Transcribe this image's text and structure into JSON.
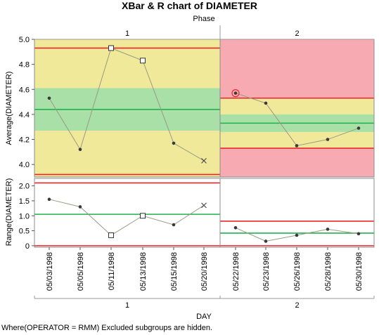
{
  "title": "XBar & R chart of DIAMETER",
  "phase_axis_label": "Phase",
  "x_axis_label": "DAY",
  "footer_note": "Where(OPERATOR = RMM) Excluded subgroups are hidden.",
  "colors": {
    "zone_yellow": "#f0e99a",
    "zone_green": "#a8e0a8",
    "zone_red": "#f8aab3",
    "limit_red": "#e8272d",
    "center_green": "#21b24b",
    "line_gray": "#9a9a86",
    "point": "#3a3a3a"
  },
  "chart_data": [
    {
      "type": "line",
      "name": "xbar",
      "ylabel": "Average(DIAMETER)",
      "ylim": [
        3.9,
        5.0
      ],
      "yticks": [
        "4.0",
        "4.2",
        "4.4",
        "4.6",
        "4.8",
        "5.0"
      ],
      "ytick_values": [
        4.0,
        4.2,
        4.4,
        4.6,
        4.8,
        5.0
      ],
      "phases": [
        {
          "label": "1",
          "ucl": 4.93,
          "lcl": 3.92,
          "center": 4.44,
          "green_zone": [
            4.27,
            4.61
          ],
          "alarm_background": false,
          "points": [
            {
              "x": "05/03/1998",
              "y": 4.53,
              "marker": "dot"
            },
            {
              "x": "05/05/1998",
              "y": 4.12,
              "marker": "dot"
            },
            {
              "x": "05/11/1998",
              "y": 4.93,
              "marker": "square"
            },
            {
              "x": "05/13/1998",
              "y": 4.83,
              "marker": "square"
            },
            {
              "x": "05/15/1998",
              "y": 4.17,
              "marker": "dot"
            },
            {
              "x": "05/20/1998",
              "y": 4.03,
              "marker": "x"
            }
          ]
        },
        {
          "label": "2",
          "ucl": 4.53,
          "lcl": 4.13,
          "center": 4.33,
          "green_zone": [
            4.26,
            4.4
          ],
          "yellow_zone": [
            4.13,
            4.53
          ],
          "alarm_background": true,
          "points": [
            {
              "x": "05/22/1998",
              "y": 4.57,
              "marker": "circled"
            },
            {
              "x": "05/23/1998",
              "y": 4.49,
              "marker": "dot"
            },
            {
              "x": "05/26/1998",
              "y": 4.15,
              "marker": "dot"
            },
            {
              "x": "05/28/1998",
              "y": 4.2,
              "marker": "dot"
            },
            {
              "x": "05/30/1998",
              "y": 4.29,
              "marker": "dot"
            }
          ]
        }
      ]
    },
    {
      "type": "line",
      "name": "range",
      "ylabel": "Range(DIAMETER)",
      "ylim": [
        -0.05,
        2.25
      ],
      "yticks": [
        "0",
        "0.5",
        "1.0",
        "1.5",
        "2.0"
      ],
      "ytick_values": [
        0,
        0.5,
        1.0,
        1.5,
        2.0
      ],
      "phases": [
        {
          "label": "1",
          "ucl": 2.1,
          "lcl": 0,
          "center": 1.05,
          "points": [
            {
              "x": "05/03/1998",
              "y": 1.55,
              "marker": "dot"
            },
            {
              "x": "05/05/1998",
              "y": 1.3,
              "marker": "dot"
            },
            {
              "x": "05/11/1998",
              "y": 0.35,
              "marker": "square"
            },
            {
              "x": "05/13/1998",
              "y": 1.0,
              "marker": "square"
            },
            {
              "x": "05/15/1998",
              "y": 0.7,
              "marker": "dot"
            },
            {
              "x": "05/20/1998",
              "y": 1.35,
              "marker": "x"
            }
          ]
        },
        {
          "label": "2",
          "ucl": 0.82,
          "lcl": 0,
          "center": 0.42,
          "points": [
            {
              "x": "05/22/1998",
              "y": 0.6,
              "marker": "dot"
            },
            {
              "x": "05/23/1998",
              "y": 0.15,
              "marker": "dot"
            },
            {
              "x": "05/26/1998",
              "y": 0.35,
              "marker": "dot"
            },
            {
              "x": "05/28/1998",
              "y": 0.55,
              "marker": "dot"
            },
            {
              "x": "05/30/1998",
              "y": 0.4,
              "marker": "dot"
            }
          ]
        }
      ]
    }
  ]
}
